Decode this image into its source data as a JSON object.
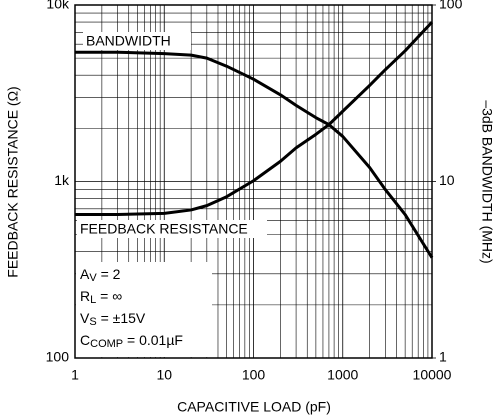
{
  "chart_data": {
    "type": "line",
    "x_label": "CAPACITIVE LOAD (pF)",
    "y_label": "FEEDBACK RESISTANCE (Ω)",
    "y2_label": "–3dB BANDWIDTH (MHz)",
    "x": [
      1,
      3,
      10,
      20,
      30,
      50,
      100,
      200,
      300,
      500,
      700,
      1000,
      2000,
      3000,
      5000,
      10000
    ],
    "series": [
      {
        "name": "FEEDBACK RESISTANCE",
        "color": "#000000",
        "axis": "y",
        "values": [
          650,
          650,
          660,
          690,
          730,
          820,
          1010,
          1300,
          1550,
          1850,
          2100,
          2500,
          3500,
          4300,
          5500,
          8000
        ]
      },
      {
        "name": "BANDWIDTH",
        "color": "#000000",
        "axis": "y2",
        "values": [
          54,
          54,
          53,
          52,
          50,
          45,
          38,
          31,
          27,
          23,
          21,
          18,
          12,
          9,
          6.5,
          3.7
        ]
      }
    ],
    "conditions": [
      [
        "A",
        "V",
        " = 2"
      ],
      [
        "R",
        "L",
        " = ∞"
      ],
      [
        "V",
        "S",
        " = ±15V"
      ],
      [
        "C",
        "COMP",
        " = 0.01µF"
      ]
    ],
    "xlim": [
      1,
      10000
    ],
    "xticks": [
      1,
      10,
      100,
      1000,
      10000
    ],
    "ylim": [
      100,
      10000
    ],
    "yticks": [
      100,
      {
        "value": 1000,
        "label": "1k"
      },
      {
        "value": 10000,
        "label": "10k"
      }
    ],
    "y2lim": [
      1,
      100
    ],
    "y2ticks": [
      1,
      10,
      100
    ],
    "xscale": "log",
    "yscale": "log",
    "grid": true
  }
}
